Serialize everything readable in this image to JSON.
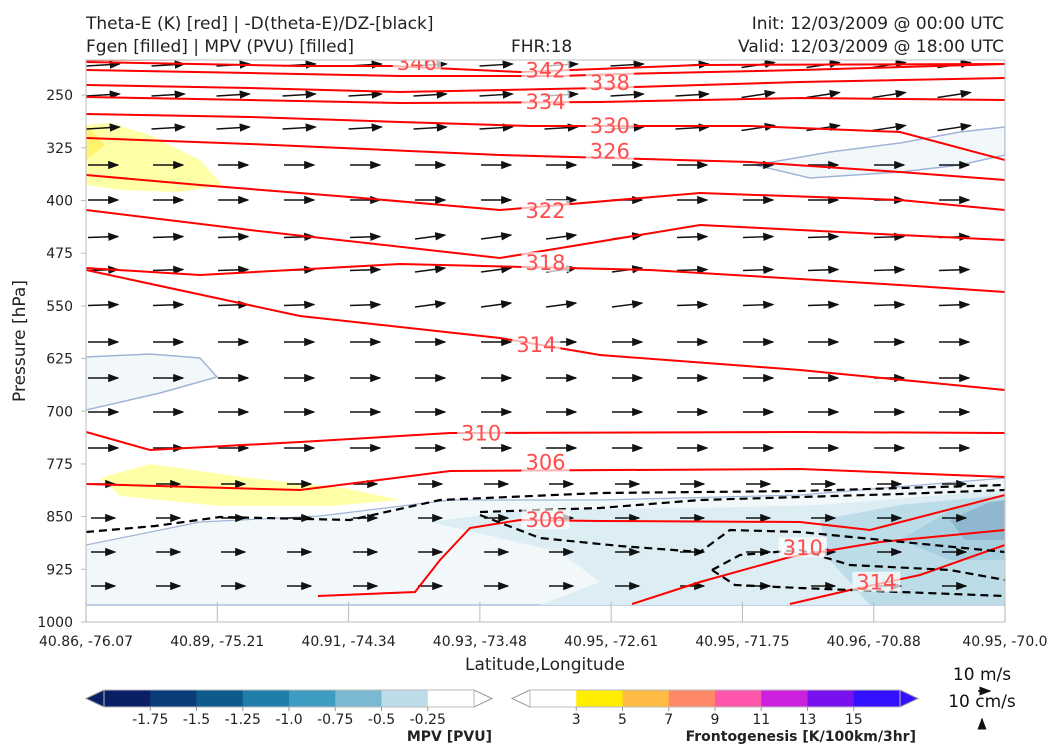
{
  "titles": {
    "line1_left": "Theta-E (K) [red] | -D(theta-E)/DZ-[black]",
    "line2_left": "Fgen [filled] | MPV (PVU) [filled]",
    "fhr": "FHR:18",
    "init": "Init: 12/03/2009 @ 00:00 UTC",
    "valid": "Valid: 12/03/2009 @ 18:00 UTC"
  },
  "wind_reference": {
    "horizontal": "10 m/s",
    "vertical": "10 cm/s"
  },
  "chart_data": {
    "type": "contour",
    "xlabel": "Latitude,Longitude",
    "ylabel": "Pressure [hPa]",
    "x_ticks": [
      "40.86, -76.07",
      "40.89, -75.21",
      "40.91, -74.34",
      "40.93, -73.48",
      "40.95, -72.61",
      "40.95, -71.75",
      "40.96, -70.88",
      "40.95, -70.0"
    ],
    "y_ticks": [
      250,
      325,
      400,
      475,
      550,
      625,
      700,
      775,
      850,
      925,
      1000
    ],
    "ylim": [
      1000,
      200
    ],
    "y_inverted": true,
    "grid": false,
    "theta_e_labels": [
      {
        "value": "346",
        "x": 0.36,
        "p": 204
      },
      {
        "value": "342",
        "x": 0.5,
        "p": 215
      },
      {
        "value": "338",
        "x": 0.57,
        "p": 233
      },
      {
        "value": "334",
        "x": 0.5,
        "p": 260
      },
      {
        "value": "330",
        "x": 0.57,
        "p": 294
      },
      {
        "value": "326",
        "x": 0.57,
        "p": 330
      },
      {
        "value": "322",
        "x": 0.5,
        "p": 415
      },
      {
        "value": "318",
        "x": 0.5,
        "p": 489
      },
      {
        "value": "314",
        "x": 0.49,
        "p": 606
      },
      {
        "value": "310",
        "x": 0.43,
        "p": 732
      },
      {
        "value": "306",
        "x": 0.5,
        "p": 773
      },
      {
        "value": "306",
        "x": 0.5,
        "p": 855
      },
      {
        "value": "310",
        "x": 0.78,
        "p": 895
      },
      {
        "value": "314",
        "x": 0.86,
        "p": 944
      }
    ],
    "mpv_colorbar": {
      "label": "MPV [PVU]",
      "ticks": [
        "-1.75",
        "-1.5",
        "-1.25",
        "-1.0",
        "-0.75",
        "-0.5",
        "-0.25"
      ],
      "colors": [
        "#0a1f66",
        "#0b3c7a",
        "#0d5a8c",
        "#1f7faa",
        "#3c9cc2",
        "#7bb8d2",
        "#bcdce8",
        "#ffffff"
      ]
    },
    "fgen_colorbar": {
      "label": "Frontogenesis [K/100km/3hr]",
      "ticks": [
        "3",
        "5",
        "7",
        "9",
        "11",
        "13",
        "15"
      ],
      "colors": [
        "#ffffff",
        "#ffee00",
        "#ffbb44",
        "#ff8866",
        "#ff55aa",
        "#cc22dd",
        "#7711ee",
        "#3311ff"
      ]
    },
    "colors": {
      "theta_e": "#ff0000",
      "stability": "#000000",
      "arrows": "#111111",
      "fgen_fill": "#ffff99",
      "mpv_fill": "#dbe9ef"
    }
  }
}
